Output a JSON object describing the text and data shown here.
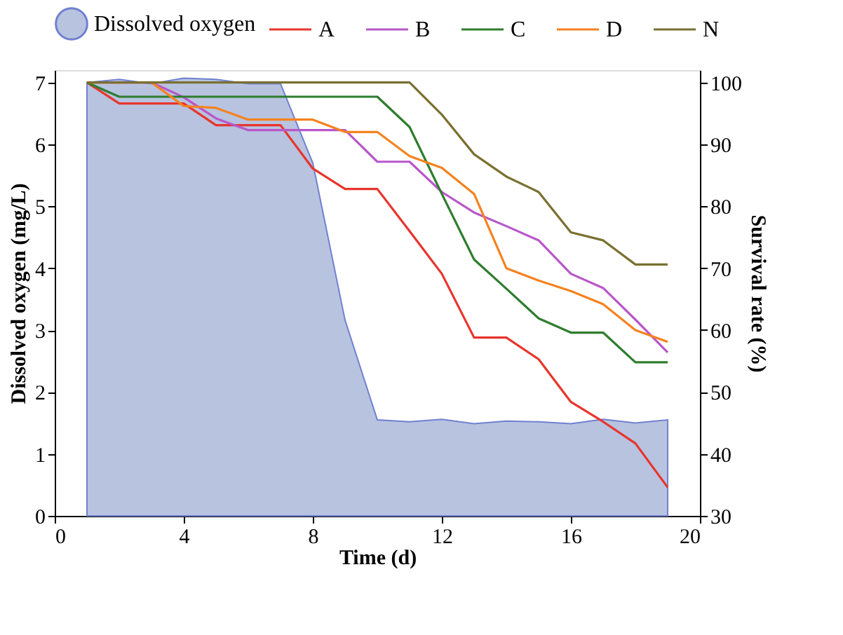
{
  "chart_data": {
    "type": "line",
    "xlabel": "Time (d)",
    "ylabel": "Dissolved oxygen (mg/L)",
    "y2label": "Survival rate (%)",
    "x": [
      1,
      2,
      3,
      4,
      5,
      6,
      7,
      8,
      9,
      10,
      11,
      12,
      13,
      14,
      15,
      16,
      17,
      18,
      19
    ],
    "xlim": [
      0,
      20
    ],
    "xticks": [
      0,
      4,
      8,
      12,
      16,
      20
    ],
    "ylim": [
      0,
      7.2
    ],
    "yticks": [
      0,
      1,
      2,
      3,
      4,
      5,
      6,
      7
    ],
    "y2lim": [
      30,
      102
    ],
    "y2ticks": [
      30,
      40,
      50,
      60,
      70,
      80,
      90,
      100
    ],
    "grid": false,
    "legend": "top",
    "marker": "none",
    "line_style": "solid",
    "series": [
      {
        "name": "Dissolved oxygen",
        "type": "area",
        "axis": "y",
        "color": "#b8c3e0",
        "values": [
          7.0,
          7.05,
          6.98,
          7.07,
          7.05,
          6.98,
          6.98,
          5.7,
          3.16,
          1.55,
          1.52,
          1.56,
          1.49,
          1.53,
          1.52,
          1.49,
          1.56,
          1.5,
          1.55
        ]
      },
      {
        "name": "A",
        "axis": "y2",
        "color": "#e8352c",
        "values": [
          100,
          96.6,
          96.6,
          96.6,
          93.1,
          93.1,
          93.1,
          86.1,
          82.8,
          82.8,
          76,
          69.1,
          58.8,
          58.8,
          55.3,
          48.4,
          45.2,
          41.7,
          34.6
        ]
      },
      {
        "name": "B",
        "axis": "y2",
        "color": "#b857c9",
        "values": [
          100,
          100,
          100,
          97.6,
          94.2,
          92.3,
          92.3,
          92.3,
          92.3,
          87.2,
          87.2,
          82.3,
          79,
          76.8,
          74.5,
          69.1,
          66.8,
          61.7,
          56.4
        ]
      },
      {
        "name": "C",
        "axis": "y2",
        "color": "#2e7d2e",
        "values": [
          100,
          97.7,
          97.7,
          97.7,
          97.7,
          97.7,
          97.7,
          97.7,
          97.7,
          97.7,
          92.8,
          82,
          71.4,
          66.7,
          61.9,
          59.6,
          59.6,
          54.8,
          54.8
        ]
      },
      {
        "name": "D",
        "axis": "y2",
        "color": "#f5821f",
        "values": [
          100,
          100,
          100,
          96.2,
          95.9,
          94,
          94,
          94,
          92,
          92,
          88.1,
          86.2,
          82,
          70,
          68,
          66.3,
          64.2,
          60,
          58.1
        ]
      },
      {
        "name": "N",
        "axis": "y2",
        "color": "#7a7030",
        "values": [
          100,
          100,
          100,
          100,
          100,
          100,
          100,
          100,
          100,
          100,
          100,
          94.8,
          88.4,
          84.8,
          82.3,
          75.8,
          74.5,
          70.6,
          70.6
        ]
      }
    ]
  }
}
